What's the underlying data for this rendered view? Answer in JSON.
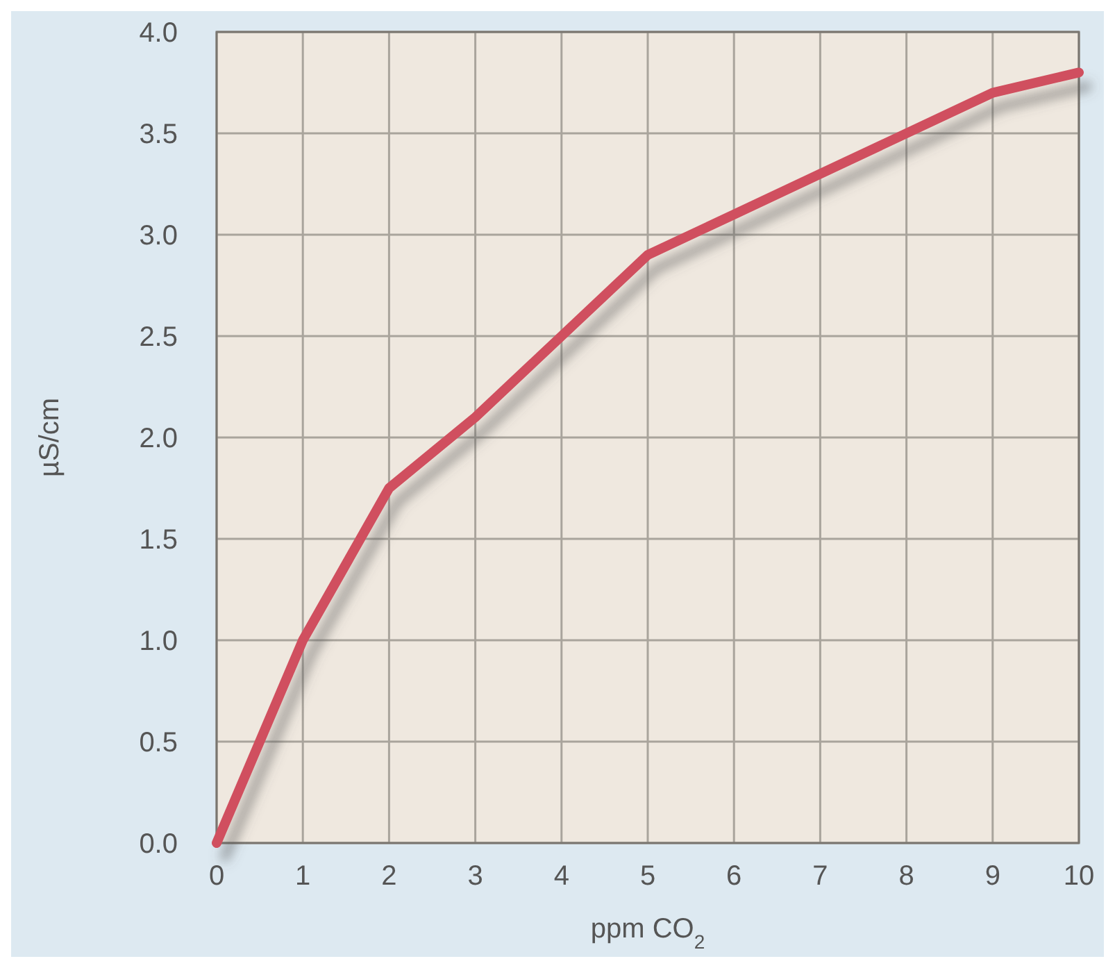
{
  "chart_data": {
    "type": "line",
    "xlabel": "ppm CO$_{2}$",
    "ylabel": "µS/cm",
    "x": [
      0,
      1,
      2,
      3,
      4,
      5,
      6,
      7,
      8,
      9,
      10
    ],
    "series": [
      {
        "color": "#d0505e",
        "values": [
          0,
          1.0,
          1.75,
          2.1,
          2.5,
          2.9,
          3.1,
          3.3,
          3.5,
          3.7,
          3.8
        ]
      }
    ],
    "xlim": [
      0,
      10
    ],
    "xticks": [
      0,
      1,
      2,
      3,
      4,
      5,
      6,
      7,
      8,
      9,
      10
    ],
    "ylim": [
      0,
      4
    ],
    "yticks": [
      {
        "value": 0,
        "label": "0.0"
      },
      {
        "value": 0.5,
        "label": "0.5"
      },
      {
        "value": 1,
        "label": "1.0"
      },
      {
        "value": 1.5,
        "label": "1.5"
      },
      {
        "value": 2,
        "label": "2.0"
      },
      {
        "value": 2.5,
        "label": "2.5"
      },
      {
        "value": 3,
        "label": "3.0"
      },
      {
        "value": 3.5,
        "label": "3.5"
      },
      {
        "value": 4,
        "label": "4.0"
      }
    ],
    "grid": true,
    "marker": "none",
    "line_style": "solid"
  }
}
